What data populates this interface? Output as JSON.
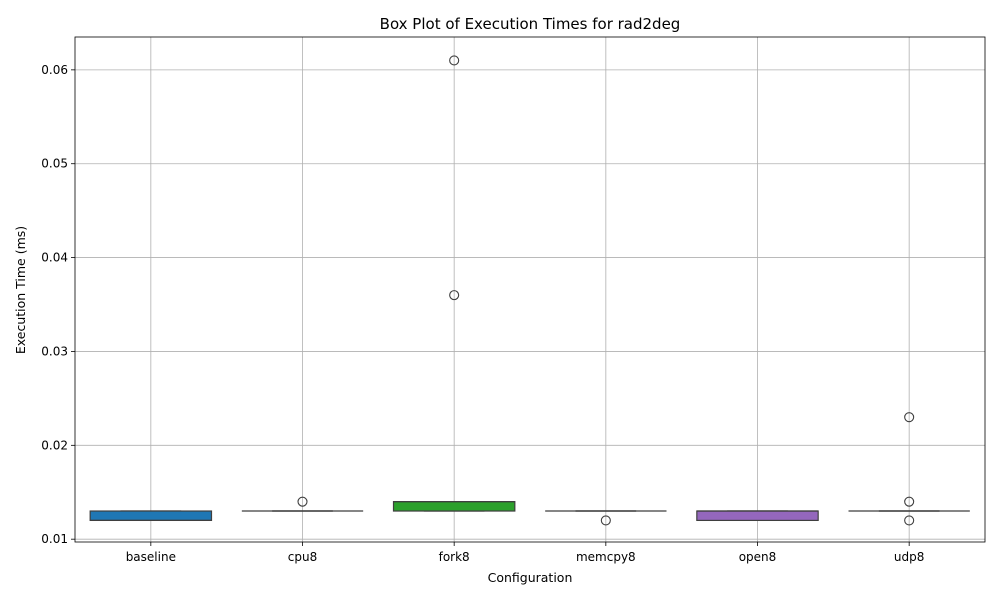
{
  "chart_data": {
    "type": "box",
    "title": "Box Plot of Execution Times for rad2deg",
    "xlabel": "Configuration",
    "ylabel": "Execution Time (ms)",
    "ylim": [
      0.0097,
      0.0635
    ],
    "yticks": [
      0.01,
      0.02,
      0.03,
      0.04,
      0.05,
      0.06
    ],
    "ytick_labels": [
      "0.01",
      "0.02",
      "0.03",
      "0.04",
      "0.05",
      "0.06"
    ],
    "grid": true,
    "categories": [
      "baseline",
      "cpu8",
      "fork8",
      "memcpy8",
      "open8",
      "udp8"
    ],
    "series": [
      {
        "category": "baseline",
        "color": "#1f77b4",
        "q1": 0.012,
        "median": 0.012,
        "q3": 0.013,
        "whisker_low": 0.012,
        "whisker_high": 0.013,
        "outliers": []
      },
      {
        "category": "cpu8",
        "color": "#ff7f0e",
        "q1": 0.013,
        "median": 0.013,
        "q3": 0.013,
        "whisker_low": 0.013,
        "whisker_high": 0.013,
        "outliers": [
          0.014
        ]
      },
      {
        "category": "fork8",
        "color": "#2ca02c",
        "q1": 0.013,
        "median": 0.014,
        "q3": 0.014,
        "whisker_low": 0.013,
        "whisker_high": 0.014,
        "outliers": [
          0.061,
          0.036
        ]
      },
      {
        "category": "memcpy8",
        "color": "#d62728",
        "q1": 0.013,
        "median": 0.013,
        "q3": 0.013,
        "whisker_low": 0.013,
        "whisker_high": 0.013,
        "outliers": [
          0.012
        ]
      },
      {
        "category": "open8",
        "color": "#9467bd",
        "q1": 0.012,
        "median": 0.013,
        "q3": 0.013,
        "whisker_low": 0.012,
        "whisker_high": 0.013,
        "outliers": []
      },
      {
        "category": "udp8",
        "color": "#8c564b",
        "q1": 0.013,
        "median": 0.013,
        "q3": 0.013,
        "whisker_low": 0.013,
        "whisker_high": 0.013,
        "outliers": [
          0.023,
          0.014,
          0.012
        ]
      }
    ]
  }
}
